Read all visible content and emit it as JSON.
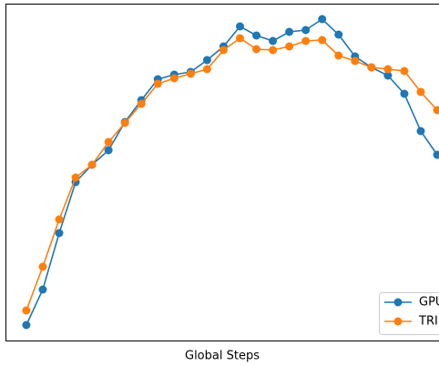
{
  "chart_data": {
    "type": "line",
    "xlabel": "Global Steps",
    "x": [
      1,
      2,
      3,
      4,
      5,
      6,
      7,
      8,
      9,
      10,
      11,
      12,
      13,
      14,
      15,
      16,
      17,
      18,
      19,
      20,
      21,
      22,
      23,
      24,
      25,
      26
    ],
    "xlim": [
      -0.27,
      26.11
    ],
    "ylim": [
      0,
      370
    ],
    "legend": "lower right",
    "series": [
      {
        "name": "GPU",
        "color": "#1f77b4",
        "values": [
          17,
          56,
          118,
          174,
          193,
          209,
          240,
          264,
          287,
          292,
          295,
          308,
          323,
          345,
          335,
          329,
          339,
          341,
          353,
          336,
          312,
          300,
          291,
          271,
          230,
          204
        ]
      },
      {
        "name": "TRI",
        "color": "#ff7f0e",
        "values": [
          33,
          81,
          133,
          179,
          193,
          218,
          239,
          260,
          282,
          288,
          293,
          298,
          319,
          332,
          320,
          319,
          323,
          329,
          330,
          313,
          307,
          300,
          298,
          296,
          273,
          253
        ]
      }
    ]
  }
}
